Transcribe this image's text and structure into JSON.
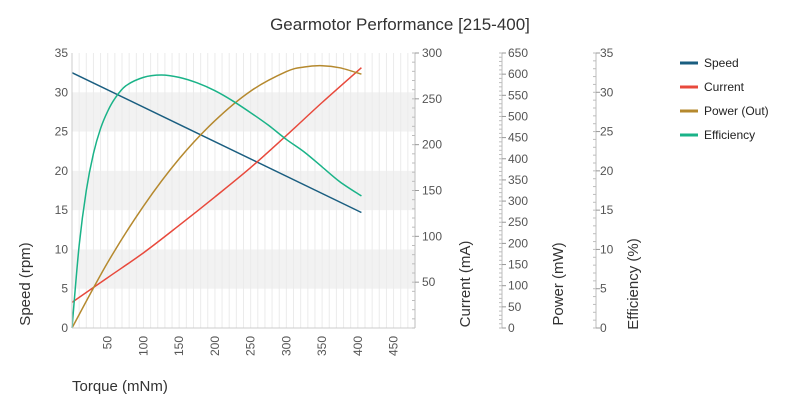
{
  "chart_data": {
    "type": "line",
    "title": "Gearmotor Performance [215-400]",
    "xlabel": "Torque (mNm)",
    "xlim": [
      0,
      480
    ],
    "x_ticks": [
      50,
      100,
      150,
      200,
      250,
      300,
      350,
      400,
      450
    ],
    "grid": true,
    "legend_position": "top-right",
    "axes": [
      {
        "id": "speed",
        "label": "Speed (rpm)",
        "ylim": [
          0,
          35
        ],
        "ticks": [
          0,
          5,
          10,
          15,
          20,
          25,
          30,
          35
        ]
      },
      {
        "id": "current",
        "label": "Current (mA)",
        "ylim": [
          0,
          300
        ],
        "ticks": [
          50,
          100,
          150,
          200,
          250,
          300
        ]
      },
      {
        "id": "power",
        "label": "Power (mW)",
        "ylim": [
          0,
          650
        ],
        "ticks": [
          0,
          50,
          100,
          150,
          200,
          250,
          300,
          350,
          400,
          450,
          500,
          550,
          600,
          650
        ]
      },
      {
        "id": "efficiency",
        "label": "Efficiency (%)",
        "ylim": [
          0,
          35
        ],
        "ticks": [
          0,
          5,
          10,
          15,
          20,
          25,
          30,
          35
        ]
      }
    ],
    "series": [
      {
        "name": "Speed",
        "axis": "speed",
        "color": "#1a5e80",
        "x": [
          0,
          405
        ],
        "y": [
          32.5,
          14.7
        ]
      },
      {
        "name": "Current",
        "axis": "current",
        "color": "#e8493c",
        "x": [
          0,
          50,
          100,
          150,
          200,
          250,
          300,
          350,
          405
        ],
        "y": [
          28,
          55,
          82,
          112,
          143,
          175,
          210,
          246,
          284
        ]
      },
      {
        "name": "Power (Out)",
        "axis": "power",
        "color": "#b5892e",
        "x": [
          0,
          50,
          100,
          150,
          200,
          250,
          300,
          325,
          350,
          375,
          405
        ],
        "y": [
          0,
          155,
          288,
          400,
          490,
          560,
          606,
          617,
          620,
          615,
          600
        ]
      },
      {
        "name": "Efficiency",
        "axis": "efficiency",
        "color": "#1ab388",
        "x": [
          0,
          10,
          20,
          30,
          40,
          50,
          60,
          75,
          100,
          125,
          150,
          175,
          200,
          225,
          250,
          275,
          300,
          325,
          350,
          375,
          405
        ],
        "y": [
          0,
          10.5,
          17.5,
          22.2,
          25.4,
          27.6,
          29.2,
          30.8,
          31.9,
          32.2,
          31.9,
          31.2,
          30.2,
          28.9,
          27.4,
          25.8,
          24.0,
          22.4,
          20.5,
          18.6,
          16.8
        ]
      }
    ]
  }
}
